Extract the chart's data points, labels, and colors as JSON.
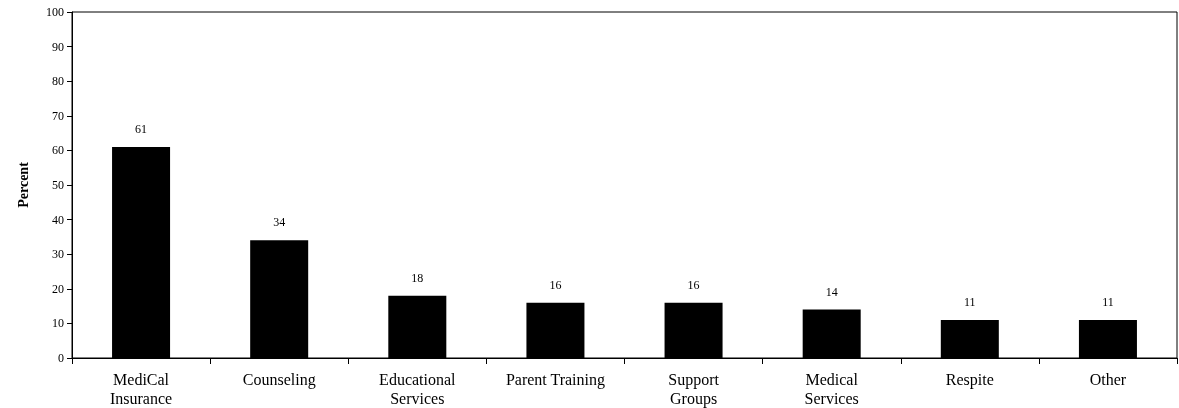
{
  "chart_data": {
    "type": "bar",
    "ylabel": "Percent",
    "categories": [
      "MediCal\nInsurance",
      "Counseling",
      "Educational\nServices",
      "Parent Training",
      "Support\nGroups",
      "Medical\nServices",
      "Respite",
      "Other"
    ],
    "values": [
      61,
      34,
      18,
      16,
      16,
      14,
      11,
      11
    ],
    "color": "#000000",
    "ylim": [
      0,
      100
    ],
    "yticks": [
      0,
      10,
      20,
      30,
      40,
      50,
      60,
      70,
      80,
      90,
      100
    ],
    "grid": false,
    "data_labels": true
  }
}
